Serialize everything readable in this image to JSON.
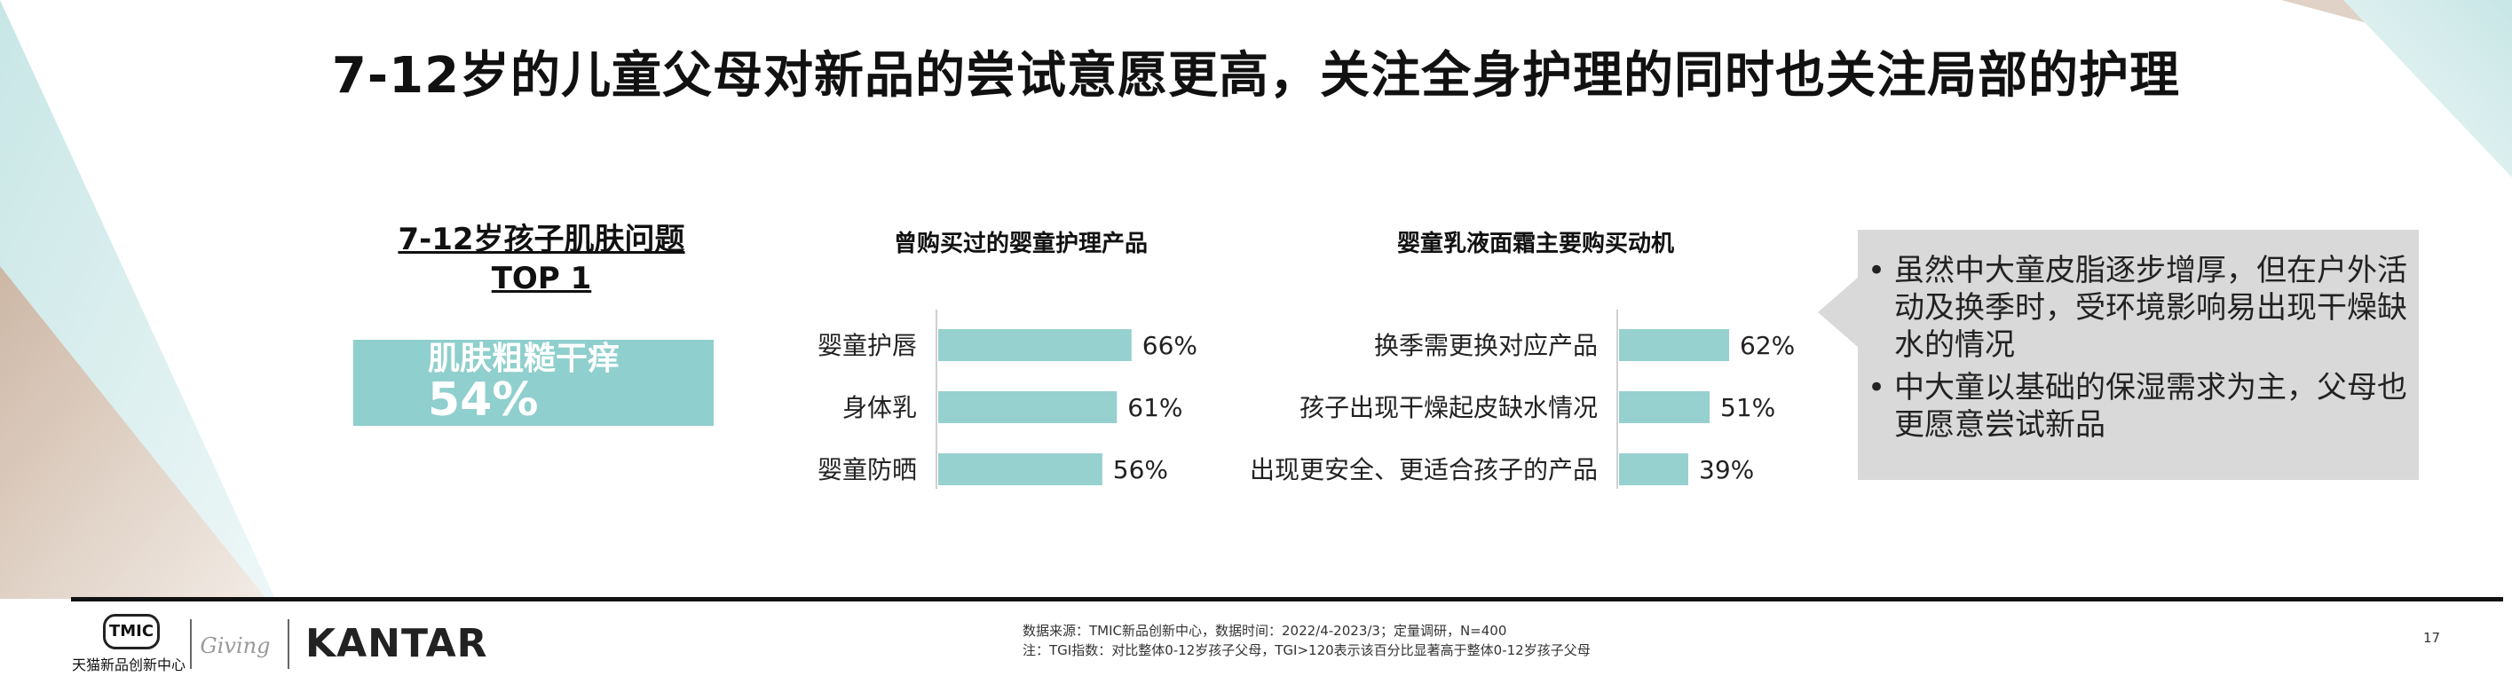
{
  "title": "7-12岁的儿童父母对新品的尝试意愿更高，关注全身护理的同时也关注局部的护理",
  "skin_card": {
    "title_line1": "7-12岁孩子肌肤问题",
    "title_line2": "TOP 1",
    "label": "肌肤粗糙干痒",
    "value": "54%"
  },
  "chart_data": [
    {
      "type": "bar",
      "orientation": "horizontal",
      "title": "曾购买过的婴童护理产品",
      "categories": [
        "婴童护唇",
        "身体乳",
        "婴童防晒"
      ],
      "values": [
        66,
        61,
        56
      ],
      "value_labels": [
        "66%",
        "61%",
        "56%"
      ],
      "bar_color": "#96d0cf"
    },
    {
      "type": "bar",
      "orientation": "horizontal",
      "title": "婴童乳液面霜主要购买动机",
      "categories": [
        "换季需更换对应产品",
        "孩子出现干燥起皮缺水情况",
        "出现更安全、更适合孩子的产品"
      ],
      "values": [
        62,
        51,
        39
      ],
      "value_labels": [
        "62%",
        "51%",
        "39%"
      ],
      "bar_color": "#96d0cf"
    }
  ],
  "callout": {
    "bullets": [
      "虽然中大童皮脂逐步增厚，但在户外活动及换季时，受环境影响易出现干燥缺水的情况",
      "中大童以基础的保湿需求为主，父母也更愿意尝试新品"
    ]
  },
  "footer": {
    "tmic_badge": "TMIC",
    "tmic_caption": "天猫新品创新中心",
    "giving_logo": "Giving",
    "kantar_logo": "KANTAR",
    "source_line1": "数据来源：TMIC新品创新中心，数据时间：2022/4-2023/3；定量调研，N=400",
    "source_line2": "注：TGI指数：对比整体0-12岁孩子父母，TGI>120表示该百分比显著高于整体0-12岁孩子父母",
    "page_number": "17"
  },
  "colors": {
    "bar": "#96d0cf",
    "card": "#8fcfcd",
    "callout_bg": "#d9d9d9",
    "deco_teal": "#cfe9e9",
    "deco_beige": "#d8c4b4"
  }
}
